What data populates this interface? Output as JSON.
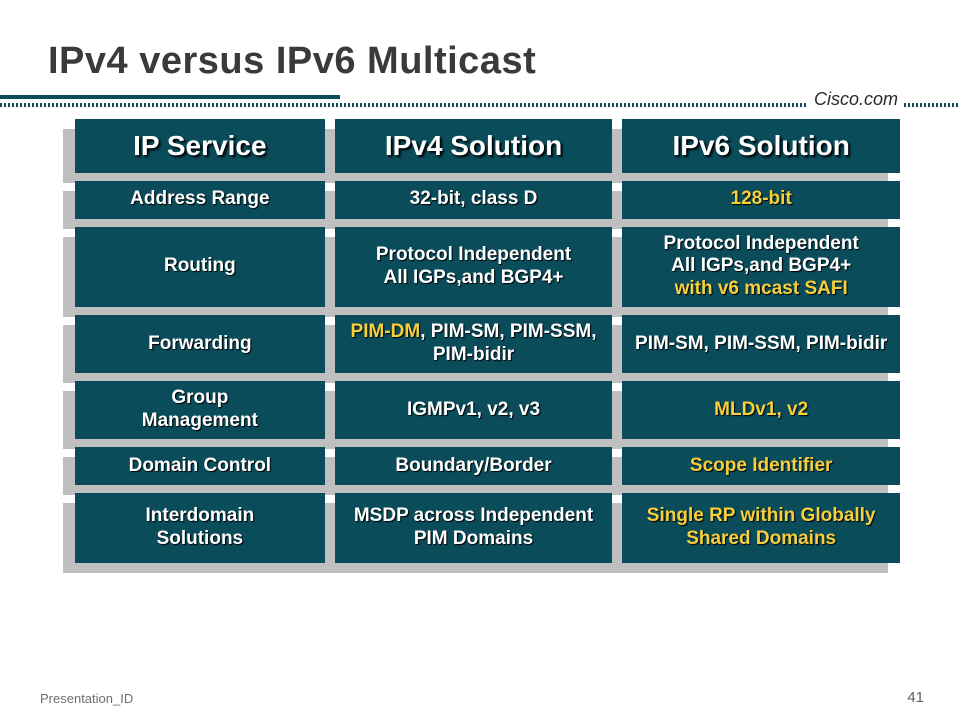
{
  "title": "IPv4 versus IPv6 Multicast",
  "brand": "Cisco.com",
  "footer": {
    "left": "Presentation_ID",
    "page": "41"
  },
  "columns": {
    "c1": "IP Service",
    "c2": "IPv4 Solution",
    "c3": "IPv6 Solution"
  },
  "rows": [
    {
      "label": "Address Range",
      "v4_a": "32-bit, class D",
      "v6_a": "128-bit"
    },
    {
      "label": "Routing",
      "v4_a": "Protocol Independent",
      "v4_b": "All IGPs,and BGP4+",
      "v6_a": "Protocol Independent",
      "v6_b": "All IGPs,and BGP4+",
      "v6_c": "with v6 mcast SAFI"
    },
    {
      "label": "Forwarding",
      "v4_hl": "PIM-DM",
      "v4_rest": ", PIM-SM, PIM-SSM, PIM-bidir",
      "v6_a": "PIM-SM, PIM-SSM, PIM-bidir"
    },
    {
      "label_a": "Group",
      "label_b": "Management",
      "v4_a": "IGMPv1, v2, v3",
      "v6_a": "MLDv1, v2"
    },
    {
      "label": "Domain Control",
      "v4_a": "Boundary/Border",
      "v6_a": "Scope Identifier"
    },
    {
      "label_a": "Interdomain",
      "label_b": "Solutions",
      "v4_a": "MSDP across Independent PIM Domains",
      "v6_a": "Single RP within Globally Shared Domains"
    }
  ],
  "colors": {
    "cell_bg": "#0a4c5a",
    "highlight": "#f7cf3c",
    "shadow": "#bfbfbf",
    "text_shadow": "#000000"
  }
}
